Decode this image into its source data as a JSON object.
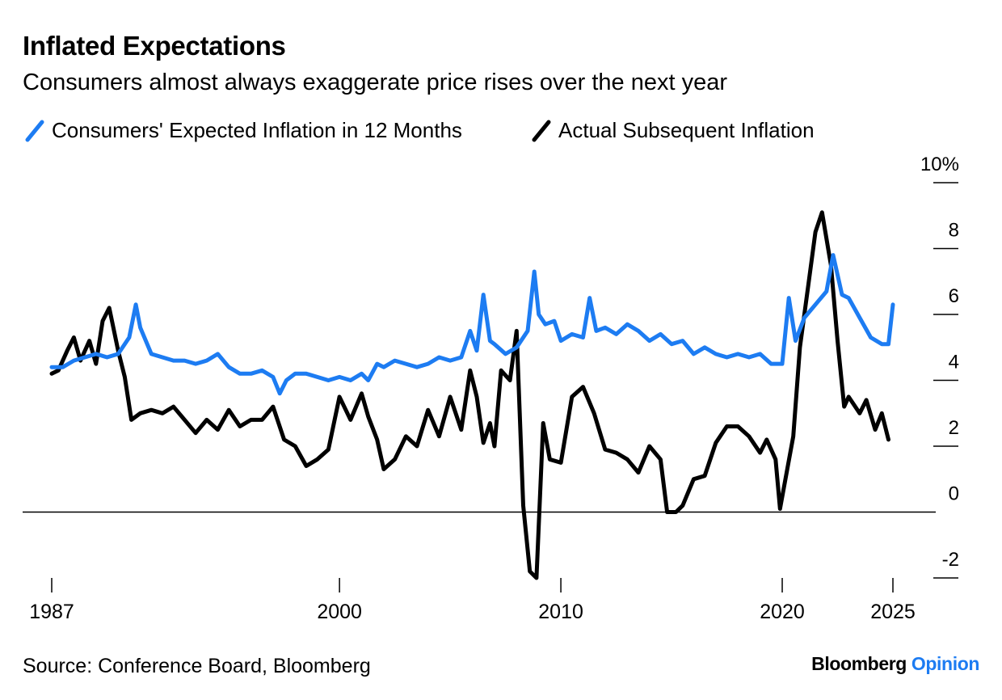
{
  "title": "Inflated Expectations",
  "subtitle": "Consumers almost always exaggerate price rises over the next year",
  "source": "Source: Conference Board, Bloomberg",
  "brand": {
    "name": "Bloomberg",
    "accent": "Opinion",
    "accent_color": "#1d7cf2"
  },
  "colors": {
    "expected": "#1d7cf2",
    "actual": "#000000",
    "axis": "#000000"
  },
  "chart_data": {
    "type": "line",
    "xlabel": "",
    "ylabel": "",
    "xlim": [
      1987,
      2025
    ],
    "ylim": [
      -2,
      10
    ],
    "x_ticks": [
      1987,
      2000,
      2010,
      2020,
      2025
    ],
    "x_tick_labels": [
      "1987",
      "2000",
      "2010",
      "2020",
      "2025"
    ],
    "y_ticks": [
      -2,
      0,
      2,
      4,
      6,
      8,
      10
    ],
    "y_tick_labels": [
      "-2",
      "0",
      "2",
      "4",
      "6",
      "8",
      "10%"
    ],
    "zero_line": true,
    "legend_position": "top-left",
    "series": [
      {
        "name": "Consumers' Expected Inflation in 12 Months",
        "color": "#1d7cf2",
        "points": [
          [
            1987.0,
            4.4
          ],
          [
            1987.5,
            4.4
          ],
          [
            1988.0,
            4.6
          ],
          [
            1988.5,
            4.7
          ],
          [
            1989.0,
            4.8
          ],
          [
            1989.5,
            4.7
          ],
          [
            1990.0,
            4.8
          ],
          [
            1990.5,
            5.3
          ],
          [
            1990.8,
            6.3
          ],
          [
            1991.0,
            5.6
          ],
          [
            1991.5,
            4.8
          ],
          [
            1992.0,
            4.7
          ],
          [
            1992.5,
            4.6
          ],
          [
            1993.0,
            4.6
          ],
          [
            1993.5,
            4.5
          ],
          [
            1994.0,
            4.6
          ],
          [
            1994.5,
            4.8
          ],
          [
            1995.0,
            4.4
          ],
          [
            1995.5,
            4.2
          ],
          [
            1996.0,
            4.2
          ],
          [
            1996.5,
            4.3
          ],
          [
            1997.0,
            4.1
          ],
          [
            1997.3,
            3.6
          ],
          [
            1997.6,
            4.0
          ],
          [
            1998.0,
            4.2
          ],
          [
            1998.5,
            4.2
          ],
          [
            1999.0,
            4.1
          ],
          [
            1999.5,
            4.0
          ],
          [
            2000.0,
            4.1
          ],
          [
            2000.5,
            4.0
          ],
          [
            2001.0,
            4.2
          ],
          [
            2001.3,
            4.0
          ],
          [
            2001.7,
            4.5
          ],
          [
            2002.0,
            4.4
          ],
          [
            2002.5,
            4.6
          ],
          [
            2003.0,
            4.5
          ],
          [
            2003.5,
            4.4
          ],
          [
            2004.0,
            4.5
          ],
          [
            2004.5,
            4.7
          ],
          [
            2005.0,
            4.6
          ],
          [
            2005.5,
            4.7
          ],
          [
            2005.9,
            5.5
          ],
          [
            2006.2,
            4.9
          ],
          [
            2006.5,
            6.6
          ],
          [
            2006.8,
            5.2
          ],
          [
            2007.0,
            5.1
          ],
          [
            2007.5,
            4.8
          ],
          [
            2008.0,
            5.0
          ],
          [
            2008.5,
            5.5
          ],
          [
            2008.8,
            7.3
          ],
          [
            2009.0,
            6.0
          ],
          [
            2009.3,
            5.7
          ],
          [
            2009.7,
            5.8
          ],
          [
            2010.0,
            5.2
          ],
          [
            2010.5,
            5.4
          ],
          [
            2011.0,
            5.3
          ],
          [
            2011.3,
            6.5
          ],
          [
            2011.6,
            5.5
          ],
          [
            2012.0,
            5.6
          ],
          [
            2012.5,
            5.4
          ],
          [
            2013.0,
            5.7
          ],
          [
            2013.5,
            5.5
          ],
          [
            2014.0,
            5.2
          ],
          [
            2014.5,
            5.4
          ],
          [
            2015.0,
            5.1
          ],
          [
            2015.5,
            5.2
          ],
          [
            2016.0,
            4.8
          ],
          [
            2016.5,
            5.0
          ],
          [
            2017.0,
            4.8
          ],
          [
            2017.5,
            4.7
          ],
          [
            2018.0,
            4.8
          ],
          [
            2018.5,
            4.7
          ],
          [
            2019.0,
            4.8
          ],
          [
            2019.5,
            4.5
          ],
          [
            2020.0,
            4.5
          ],
          [
            2020.3,
            6.5
          ],
          [
            2020.6,
            5.2
          ],
          [
            2021.0,
            5.9
          ],
          [
            2021.5,
            6.3
          ],
          [
            2022.0,
            6.7
          ],
          [
            2022.3,
            7.8
          ],
          [
            2022.7,
            6.6
          ],
          [
            2023.0,
            6.5
          ],
          [
            2023.5,
            5.9
          ],
          [
            2024.0,
            5.3
          ],
          [
            2024.5,
            5.1
          ],
          [
            2024.8,
            5.1
          ],
          [
            2025.0,
            6.3
          ]
        ]
      },
      {
        "name": "Actual Subsequent Inflation",
        "color": "#000000",
        "points": [
          [
            1987.0,
            4.2
          ],
          [
            1987.3,
            4.3
          ],
          [
            1987.7,
            4.9
          ],
          [
            1988.0,
            5.3
          ],
          [
            1988.3,
            4.6
          ],
          [
            1988.7,
            5.2
          ],
          [
            1989.0,
            4.5
          ],
          [
            1989.3,
            5.8
          ],
          [
            1989.6,
            6.2
          ],
          [
            1990.0,
            4.9
          ],
          [
            1990.3,
            4.1
          ],
          [
            1990.6,
            2.8
          ],
          [
            1991.0,
            3.0
          ],
          [
            1991.5,
            3.1
          ],
          [
            1992.0,
            3.0
          ],
          [
            1992.5,
            3.2
          ],
          [
            1993.0,
            2.8
          ],
          [
            1993.5,
            2.4
          ],
          [
            1994.0,
            2.8
          ],
          [
            1994.5,
            2.5
          ],
          [
            1995.0,
            3.1
          ],
          [
            1995.5,
            2.6
          ],
          [
            1996.0,
            2.8
          ],
          [
            1996.5,
            2.8
          ],
          [
            1997.0,
            3.2
          ],
          [
            1997.5,
            2.2
          ],
          [
            1998.0,
            2.0
          ],
          [
            1998.5,
            1.4
          ],
          [
            1999.0,
            1.6
          ],
          [
            1999.5,
            1.9
          ],
          [
            2000.0,
            3.5
          ],
          [
            2000.5,
            2.8
          ],
          [
            2001.0,
            3.6
          ],
          [
            2001.3,
            2.9
          ],
          [
            2001.7,
            2.2
          ],
          [
            2002.0,
            1.3
          ],
          [
            2002.5,
            1.6
          ],
          [
            2003.0,
            2.3
          ],
          [
            2003.5,
            2.0
          ],
          [
            2004.0,
            3.1
          ],
          [
            2004.5,
            2.3
          ],
          [
            2005.0,
            3.5
          ],
          [
            2005.5,
            2.5
          ],
          [
            2005.9,
            4.3
          ],
          [
            2006.2,
            3.5
          ],
          [
            2006.5,
            2.1
          ],
          [
            2006.8,
            2.7
          ],
          [
            2007.0,
            2.0
          ],
          [
            2007.3,
            4.3
          ],
          [
            2007.7,
            4.0
          ],
          [
            2008.0,
            5.5
          ],
          [
            2008.3,
            0.2
          ],
          [
            2008.6,
            -1.8
          ],
          [
            2008.9,
            -2.0
          ],
          [
            2009.2,
            2.7
          ],
          [
            2009.5,
            1.6
          ],
          [
            2010.0,
            1.5
          ],
          [
            2010.5,
            3.5
          ],
          [
            2011.0,
            3.8
          ],
          [
            2011.5,
            3.0
          ],
          [
            2012.0,
            1.9
          ],
          [
            2012.5,
            1.8
          ],
          [
            2013.0,
            1.6
          ],
          [
            2013.5,
            1.2
          ],
          [
            2014.0,
            2.0
          ],
          [
            2014.5,
            1.6
          ],
          [
            2014.8,
            0.0
          ],
          [
            2015.2,
            0.0
          ],
          [
            2015.5,
            0.2
          ],
          [
            2016.0,
            1.0
          ],
          [
            2016.5,
            1.1
          ],
          [
            2017.0,
            2.1
          ],
          [
            2017.5,
            2.6
          ],
          [
            2018.0,
            2.6
          ],
          [
            2018.5,
            2.3
          ],
          [
            2019.0,
            1.8
          ],
          [
            2019.3,
            2.2
          ],
          [
            2019.7,
            1.6
          ],
          [
            2019.9,
            0.1
          ],
          [
            2020.2,
            1.2
          ],
          [
            2020.5,
            2.3
          ],
          [
            2020.8,
            5.0
          ],
          [
            2021.2,
            7.0
          ],
          [
            2021.5,
            8.5
          ],
          [
            2021.8,
            9.1
          ],
          [
            2022.2,
            7.5
          ],
          [
            2022.5,
            5.2
          ],
          [
            2022.8,
            3.2
          ],
          [
            2023.0,
            3.5
          ],
          [
            2023.5,
            3.0
          ],
          [
            2023.8,
            3.4
          ],
          [
            2024.2,
            2.5
          ],
          [
            2024.5,
            3.0
          ],
          [
            2024.8,
            2.2
          ]
        ]
      }
    ]
  }
}
